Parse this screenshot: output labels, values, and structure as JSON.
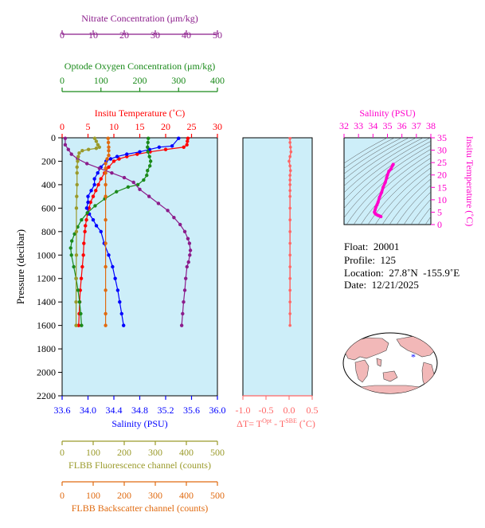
{
  "chart_data": [
    {
      "type": "line",
      "panel": "main-profile",
      "ylabel": "Pressure (decibar)",
      "ylim": [
        2200,
        0
      ],
      "yticks": [
        0,
        200,
        400,
        600,
        800,
        1000,
        1200,
        1400,
        1600,
        1800,
        2000,
        2200
      ],
      "grid": false,
      "axes": {
        "nitrate": {
          "label": "Nitrate Concentration (μm/kg)",
          "range": [
            0,
            50
          ],
          "ticks": [
            0,
            10,
            20,
            30,
            40,
            50
          ],
          "color": "#8b1c8b"
        },
        "oxygen": {
          "label": "Optode Oxygen Concentration (μm/kg)",
          "range": [
            0,
            400
          ],
          "ticks": [
            0,
            100,
            200,
            300,
            400
          ],
          "color": "#1a8a1a"
        },
        "temperature": {
          "label": "Insitu Temperature (˚C)",
          "range": [
            0,
            30
          ],
          "ticks": [
            0,
            5,
            10,
            15,
            20,
            25,
            30
          ],
          "color": "#ff0000"
        },
        "salinity": {
          "label": "Salinity (PSU)",
          "range": [
            33.6,
            36.0
          ],
          "ticks": [
            "33.6",
            "34.0",
            "34.4",
            "34.8",
            "35.2",
            "35.6",
            "36.0"
          ],
          "color": "#0000ff"
        },
        "fluorescence": {
          "label": "FLBB Fluorescence channel (counts)",
          "range": [
            0,
            500
          ],
          "ticks": [
            0,
            100,
            200,
            300,
            400,
            500
          ],
          "color": "#9a9a2a"
        },
        "backscatter": {
          "label": "FLBB Backscatter channel (counts)",
          "range": [
            0,
            500
          ],
          "ticks": [
            0,
            100,
            200,
            300,
            400,
            500
          ],
          "color": "#e06a10"
        }
      },
      "series": [
        {
          "axis": "temperature",
          "points": [
            [
              24.3,
              5
            ],
            [
              24.2,
              30
            ],
            [
              24.1,
              60
            ],
            [
              23.5,
              80
            ],
            [
              20,
              100
            ],
            [
              17,
              120
            ],
            [
              14.5,
              140
            ],
            [
              12.5,
              160
            ],
            [
              11,
              180
            ],
            [
              10,
              200
            ],
            [
              9,
              250
            ],
            [
              8.2,
              300
            ],
            [
              7.5,
              350
            ],
            [
              7,
              400
            ],
            [
              6.5,
              450
            ],
            [
              6,
              500
            ],
            [
              5.5,
              550
            ],
            [
              5.2,
              600
            ],
            [
              4.9,
              650
            ],
            [
              4.7,
              700
            ],
            [
              4.5,
              750
            ],
            [
              4.4,
              800
            ],
            [
              4.2,
              900
            ],
            [
              4.1,
              1000
            ],
            [
              3.9,
              1100
            ],
            [
              3.7,
              1200
            ],
            [
              3.5,
              1300
            ],
            [
              3.4,
              1400
            ],
            [
              3.3,
              1500
            ],
            [
              3.2,
              1600
            ]
          ]
        },
        {
          "axis": "salinity",
          "points": [
            [
              35.4,
              5
            ],
            [
              35.3,
              70
            ],
            [
              35.1,
              80
            ],
            [
              34.95,
              100
            ],
            [
              34.8,
              120
            ],
            [
              34.6,
              140
            ],
            [
              34.45,
              160
            ],
            [
              34.35,
              180
            ],
            [
              34.28,
              200
            ],
            [
              34.2,
              250
            ],
            [
              34.15,
              300
            ],
            [
              34.1,
              350
            ],
            [
              34.1,
              400
            ],
            [
              34.05,
              450
            ],
            [
              34.0,
              500
            ],
            [
              34.0,
              550
            ],
            [
              33.98,
              600
            ],
            [
              34.02,
              650
            ],
            [
              34.08,
              700
            ],
            [
              34.13,
              750
            ],
            [
              34.2,
              800
            ],
            [
              34.25,
              900
            ],
            [
              34.32,
              1000
            ],
            [
              34.38,
              1100
            ],
            [
              34.42,
              1200
            ],
            [
              34.46,
              1300
            ],
            [
              34.49,
              1400
            ],
            [
              34.52,
              1500
            ],
            [
              34.55,
              1600
            ]
          ]
        },
        {
          "axis": "oxygen",
          "points": [
            [
              222,
              5
            ],
            [
              221,
              40
            ],
            [
              220,
              80
            ],
            [
              221,
              120
            ],
            [
              225,
              160
            ],
            [
              228,
              200
            ],
            [
              226,
              240
            ],
            [
              220,
              280
            ],
            [
              218,
              320
            ],
            [
              210,
              360
            ],
            [
              195,
              400
            ],
            [
              170,
              420
            ],
            [
              140,
              460
            ],
            [
              110,
              520
            ],
            [
              85,
              580
            ],
            [
              65,
              640
            ],
            [
              50,
              700
            ],
            [
              40,
              760
            ],
            [
              32,
              820
            ],
            [
              25,
              880
            ],
            [
              22,
              940
            ],
            [
              24,
              1000
            ],
            [
              30,
              1100
            ],
            [
              36,
              1200
            ],
            [
              41,
              1300
            ],
            [
              45,
              1400
            ],
            [
              48,
              1500
            ],
            [
              50,
              1600
            ]
          ]
        },
        {
          "axis": "nitrate",
          "points": [
            [
              1,
              5
            ],
            [
              1,
              60
            ],
            [
              2,
              100
            ],
            [
              3,
              140
            ],
            [
              5,
              180
            ],
            [
              8,
              220
            ],
            [
              12,
              260
            ],
            [
              16,
              300
            ],
            [
              20,
              340
            ],
            [
              23,
              380
            ],
            [
              25,
              440
            ],
            [
              28,
              500
            ],
            [
              31,
              560
            ],
            [
              34,
              620
            ],
            [
              36,
              680
            ],
            [
              38,
              740
            ],
            [
              39.5,
              800
            ],
            [
              40.5,
              860
            ],
            [
              41,
              900
            ],
            [
              41.3,
              960
            ],
            [
              41.1,
              1000
            ],
            [
              40.7,
              1060
            ],
            [
              40.2,
              1100
            ],
            [
              39.8,
              1200
            ],
            [
              39.5,
              1300
            ],
            [
              39.1,
              1400
            ],
            [
              38.8,
              1500
            ],
            [
              38.5,
              1600
            ]
          ]
        },
        {
          "axis": "fluorescence",
          "points": [
            [
              105,
              5
            ],
            [
              110,
              30
            ],
            [
              115,
              60
            ],
            [
              120,
              80
            ],
            [
              110,
              90
            ],
            [
              85,
              100
            ],
            [
              65,
              110
            ],
            [
              55,
              130
            ],
            [
              52,
              160
            ],
            [
              50,
              200
            ],
            [
              48,
              250
            ],
            [
              48,
              300
            ],
            [
              48,
              400
            ],
            [
              47,
              500
            ],
            [
              46,
              600
            ],
            [
              46,
              800
            ],
            [
              46,
              1000
            ],
            [
              45,
              1200
            ],
            [
              45,
              1400
            ],
            [
              45,
              1600
            ]
          ]
        },
        {
          "axis": "backscatter",
          "points": [
            [
              148,
              5
            ],
            [
              149,
              40
            ],
            [
              150,
              80
            ],
            [
              150,
              110
            ],
            [
              150,
              150
            ],
            [
              145,
              180
            ],
            [
              140,
              220
            ],
            [
              140,
              260
            ],
            [
              140,
              300
            ],
            [
              140,
              400
            ],
            [
              140,
              500
            ],
            [
              140,
              700
            ],
            [
              140,
              900
            ],
            [
              140,
              1100
            ],
            [
              140,
              1300
            ],
            [
              140,
              1500
            ],
            [
              140,
              1600
            ]
          ]
        }
      ]
    },
    {
      "type": "line",
      "panel": "delta-t",
      "xlabel": "ΔT= T^Opt - T^SBE (˚C)",
      "xlim": [
        -1.0,
        0.5
      ],
      "xticks": [
        "-1.0",
        "-0.5",
        "0.0",
        "0.5"
      ],
      "ylim": [
        2200,
        0
      ],
      "color": "#ff6666",
      "series": [
        {
          "points": [
            [
              0.02,
              5
            ],
            [
              0.02,
              40
            ],
            [
              0.03,
              80
            ],
            [
              0.04,
              120
            ],
            [
              0.02,
              160
            ],
            [
              0.0,
              200
            ],
            [
              0.02,
              240
            ],
            [
              0.03,
              280
            ],
            [
              0.02,
              320
            ],
            [
              0.02,
              360
            ],
            [
              0.02,
              400
            ],
            [
              0.02,
              450
            ],
            [
              0.02,
              500
            ],
            [
              0.02,
              600
            ],
            [
              0.02,
              700
            ],
            [
              0.02,
              800
            ],
            [
              0.02,
              900
            ],
            [
              0.02,
              1000
            ],
            [
              0.02,
              1100
            ],
            [
              0.02,
              1200
            ],
            [
              0.02,
              1300
            ],
            [
              0.02,
              1400
            ],
            [
              0.02,
              1500
            ],
            [
              0.02,
              1600
            ]
          ]
        }
      ]
    },
    {
      "type": "line",
      "panel": "ts-diagram",
      "title": "Salinity (PSU)",
      "xlim": [
        32,
        38
      ],
      "xticks": [
        "32",
        "33",
        "34",
        "35",
        "36",
        "37",
        "38"
      ],
      "ylabel": "Insitu Temperature (˚C)",
      "ylim": [
        0,
        35
      ],
      "yticks": [
        0,
        5,
        10,
        15,
        20,
        25,
        30,
        35
      ],
      "color": "#ff00cc",
      "series": [
        {
          "points": [
            [
              35.4,
              24.3
            ],
            [
              35.35,
              23.8
            ],
            [
              35.25,
              22.5
            ],
            [
              35.1,
              21.5
            ],
            [
              35.0,
              20
            ],
            [
              34.95,
              19
            ],
            [
              34.85,
              17
            ],
            [
              34.7,
              15
            ],
            [
              34.6,
              13
            ],
            [
              34.45,
              11
            ],
            [
              34.35,
              9
            ],
            [
              34.28,
              8
            ],
            [
              34.2,
              7
            ],
            [
              34.15,
              6
            ],
            [
              34.1,
              5
            ],
            [
              34.15,
              4.5
            ],
            [
              34.25,
              4.0
            ],
            [
              34.35,
              3.7
            ],
            [
              34.45,
              3.5
            ],
            [
              34.55,
              3.2
            ]
          ]
        }
      ]
    }
  ],
  "info": {
    "float": "Float:  20001",
    "profile": "Profile:  125",
    "location": "Location:  27.8˚N  -155.9˚E",
    "date": "Date:  12/21/2025"
  },
  "map": {
    "marker": "*",
    "marker_color": "#0000ff"
  }
}
